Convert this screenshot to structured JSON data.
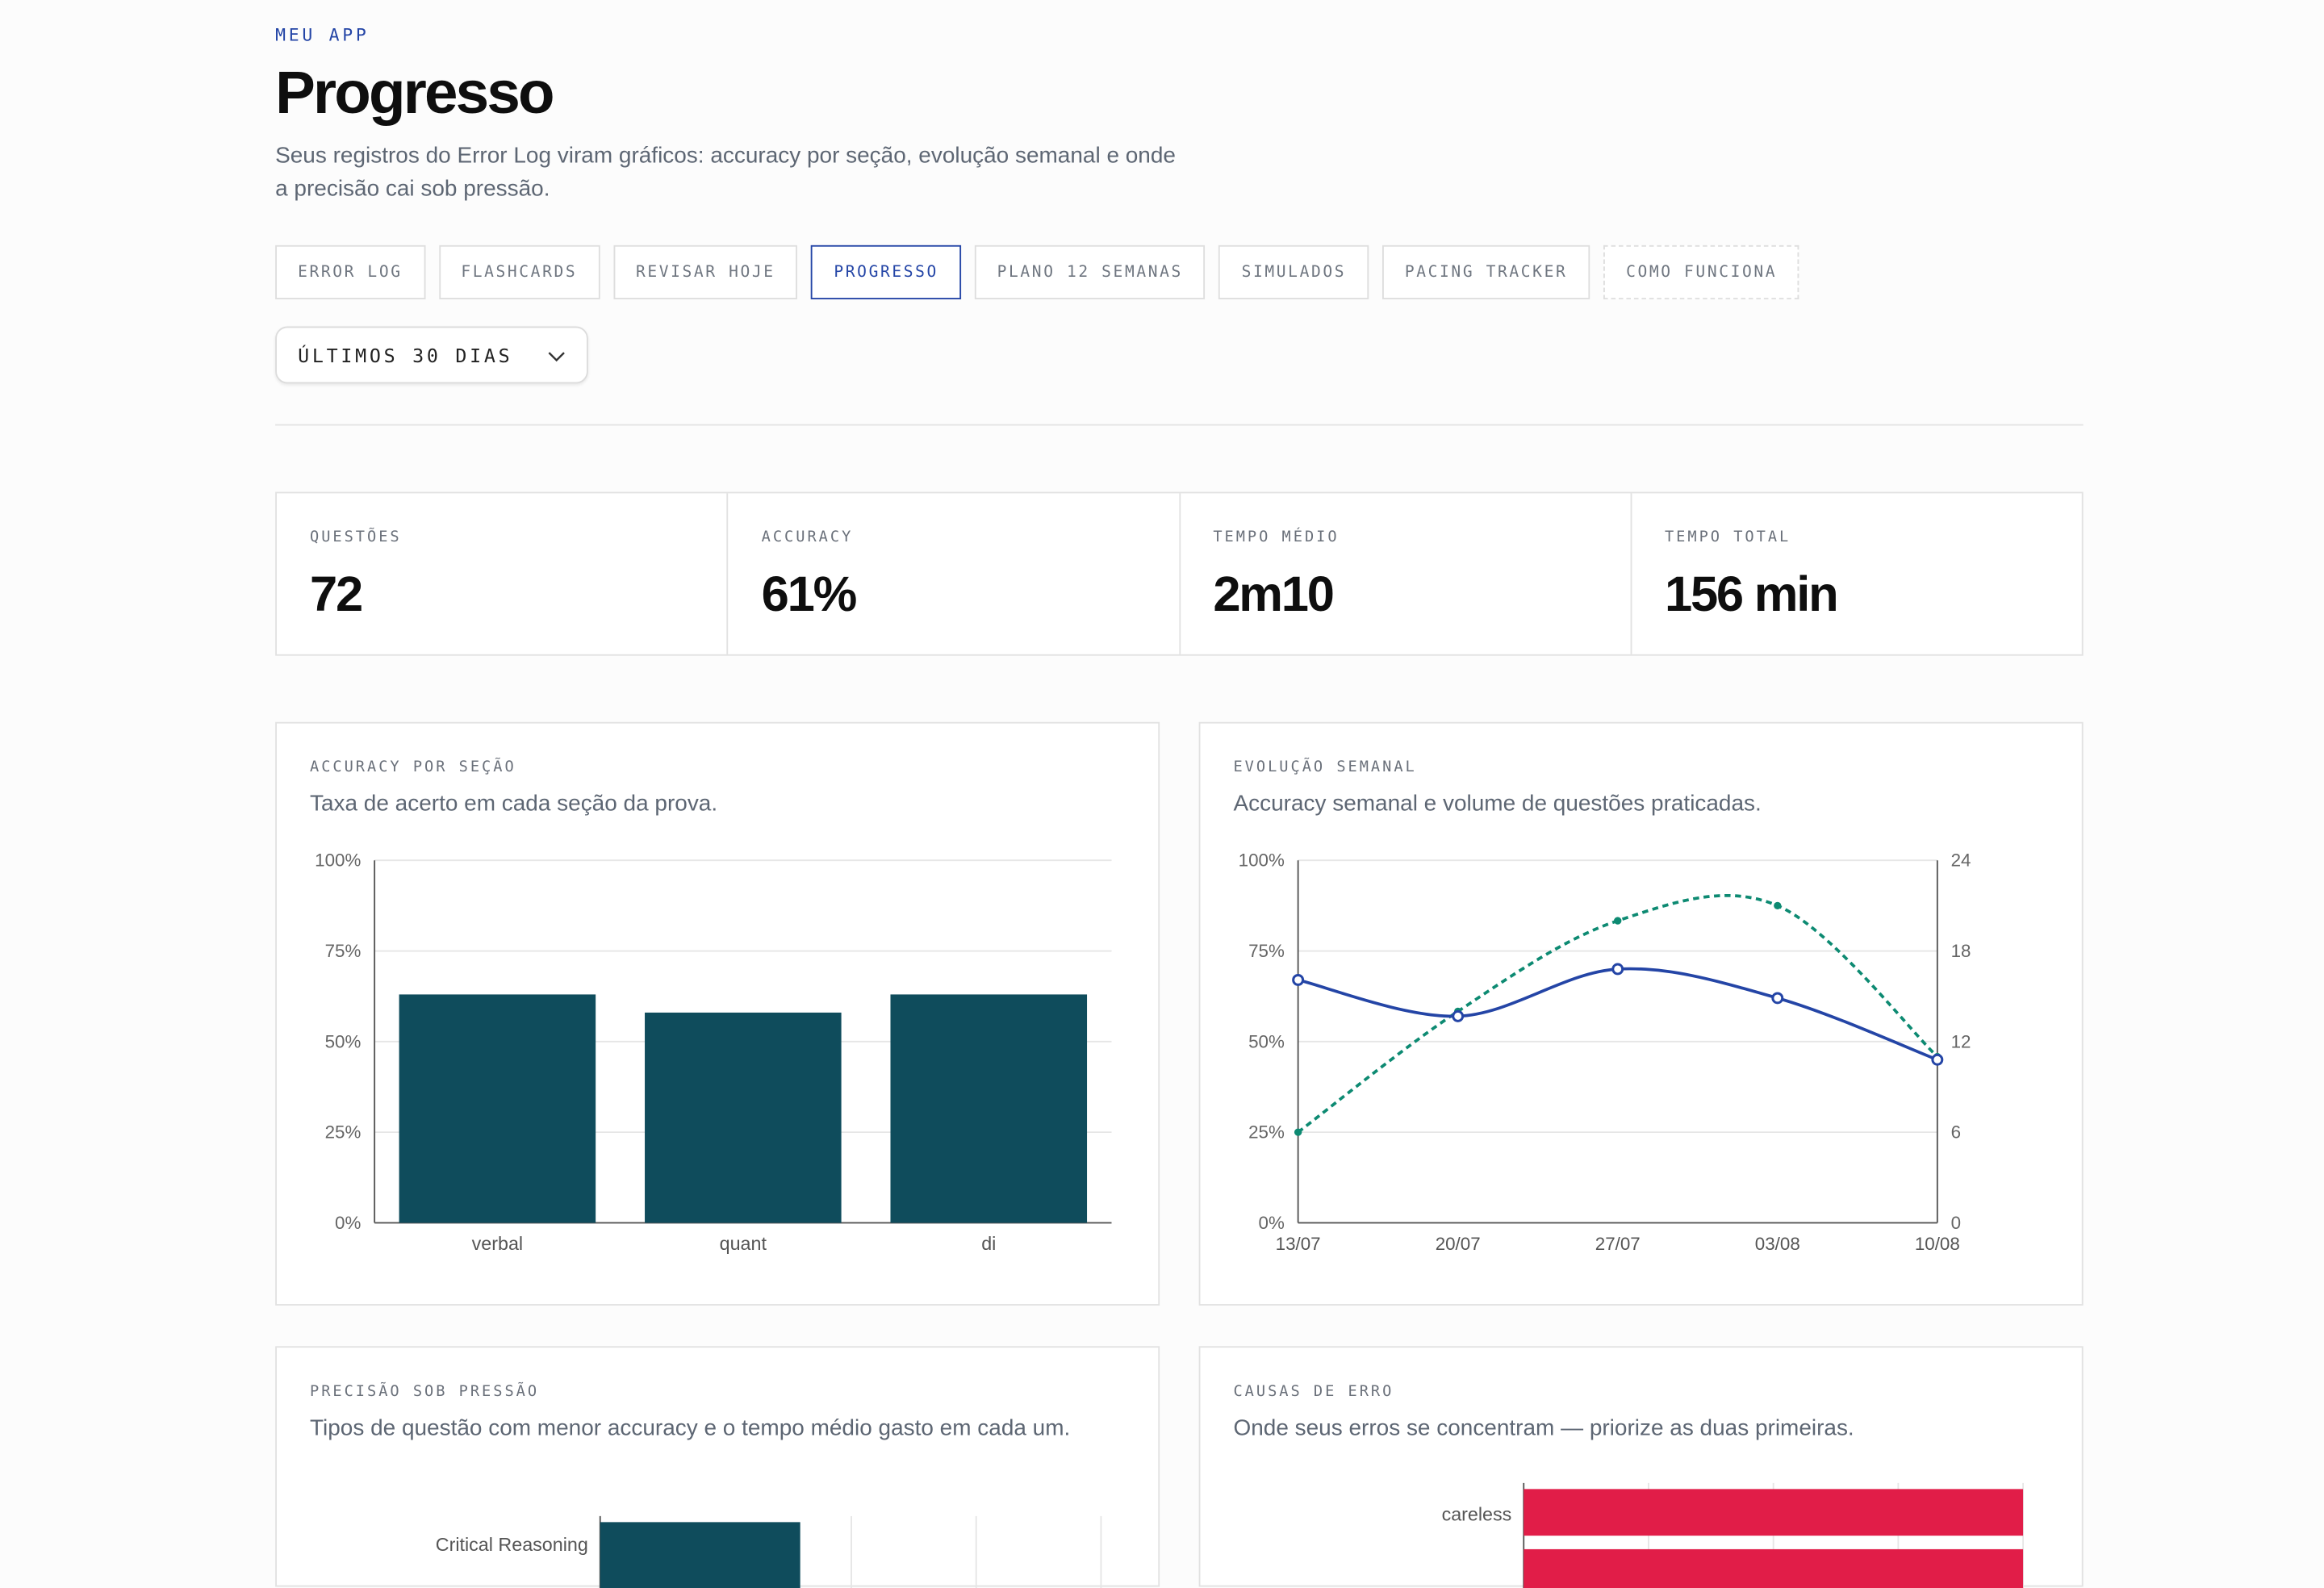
{
  "header": {
    "eyebrow": "MEU APP",
    "title": "Progresso",
    "subtitle": "Seus registros do Error Log viram gráficos: accuracy por seção, evolução semanal e onde a precisão cai sob pressão."
  },
  "tabs": [
    {
      "label": "ERROR LOG",
      "active": false
    },
    {
      "label": "FLASHCARDS",
      "active": false
    },
    {
      "label": "REVISAR HOJE",
      "active": false
    },
    {
      "label": "PROGRESSO",
      "active": true
    },
    {
      "label": "PLANO 12 SEMANAS",
      "active": false
    },
    {
      "label": "SIMULADOS",
      "active": false
    },
    {
      "label": "PACING TRACKER",
      "active": false
    },
    {
      "label": "COMO FUNCIONA",
      "active": false
    }
  ],
  "filter": {
    "selected": "ÚLTIMOS 30 DIAS"
  },
  "stats": [
    {
      "label": "QUESTÕES",
      "value": "72"
    },
    {
      "label": "ACCURACY",
      "value": "61%"
    },
    {
      "label": "TEMPO MÉDIO",
      "value": "2m10"
    },
    {
      "label": "TEMPO TOTAL",
      "value": "156 min"
    }
  ],
  "cards": {
    "section": {
      "label": "ACCURACY POR SEÇÃO",
      "desc": "Taxa de acerto em cada seção da prova."
    },
    "weekly": {
      "label": "EVOLUÇÃO SEMANAL",
      "desc": "Accuracy semanal e volume de questões praticadas."
    },
    "pressure": {
      "label": "PRECISÃO SOB PRESSÃO",
      "desc": "Tipos de questão com menor accuracy e o tempo médio gasto em cada um."
    },
    "causes": {
      "label": "CAUSAS DE ERRO",
      "desc": "Onde seus erros se concentram — priorize as duas primeiras."
    }
  },
  "colors": {
    "accent": "#2445a6",
    "bar": "#0f4c5c",
    "teal": "#0d8a72",
    "red": "#e11d48"
  },
  "chart_data": [
    {
      "type": "bar",
      "categories": [
        "verbal",
        "quant",
        "di"
      ],
      "values": [
        63,
        58,
        63
      ],
      "ylim": [
        0,
        100
      ],
      "yticks": [
        "0%",
        "25%",
        "50%",
        "75%",
        "100%"
      ]
    },
    {
      "type": "line",
      "x": [
        "13/07",
        "20/07",
        "27/07",
        "03/08",
        "10/08"
      ],
      "series": [
        {
          "values": [
            67,
            57,
            70,
            62,
            45
          ],
          "axis": "left"
        },
        {
          "values": [
            6,
            14,
            20,
            21,
            11
          ],
          "axis": "right",
          "style": "dashed"
        }
      ],
      "ylim": [
        0,
        100
      ],
      "yticks": [
        "0%",
        "25%",
        "50%",
        "75%",
        "100%"
      ],
      "y2lim": [
        0,
        24
      ],
      "y2ticks": [
        "0",
        "6",
        "12",
        "18",
        "24"
      ]
    },
    {
      "type": "bar",
      "orientation": "horizontal",
      "categories": [
        "Critical Reasoning"
      ]
    },
    {
      "type": "bar",
      "orientation": "horizontal",
      "categories": [
        "careless"
      ]
    }
  ]
}
